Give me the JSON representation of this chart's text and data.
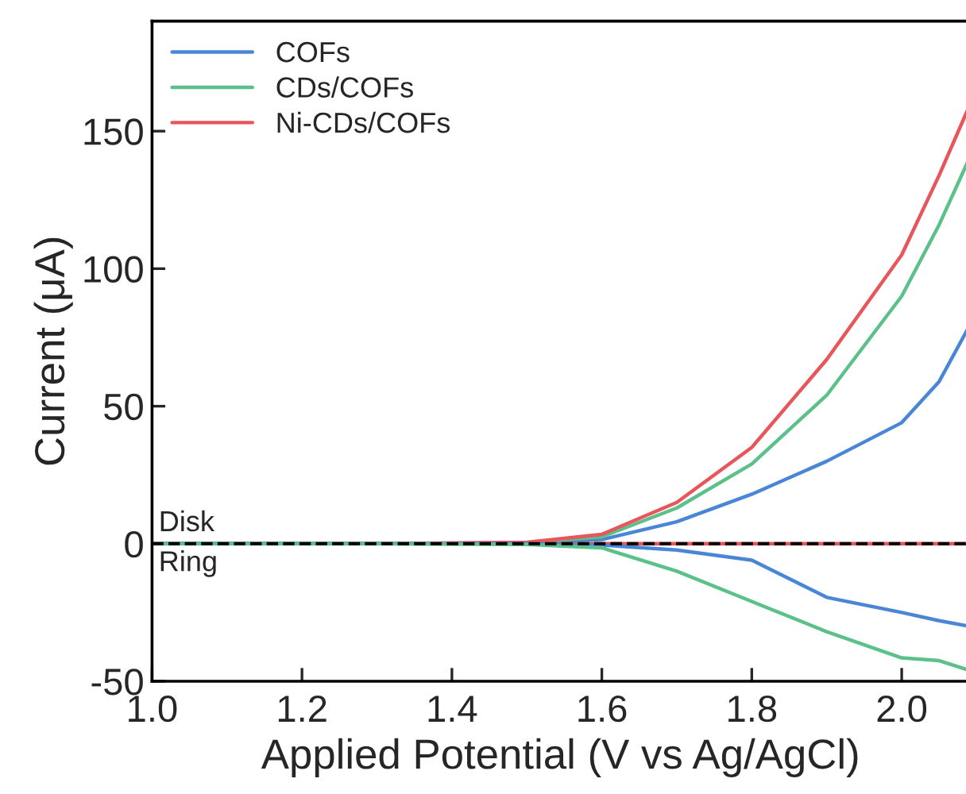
{
  "chart_data": {
    "type": "line",
    "xlabel": "Applied Potential (V vs Ag/AgCl)",
    "ylabel": "Current (μA)",
    "x": [
      1.0,
      1.3,
      1.5,
      1.6,
      1.7,
      1.8,
      1.9,
      2.0,
      2.05,
      2.09
    ],
    "series": [
      {
        "name": "COFs",
        "color": "#4a86d6",
        "values": [
          0,
          0,
          0.3,
          1.5,
          8,
          18,
          30,
          44,
          59,
          79
        ]
      },
      {
        "name": "CDs/COFs",
        "color": "#5cc08a",
        "values": [
          0,
          0,
          0.4,
          2.5,
          13,
          29,
          54,
          90,
          116,
          140
        ]
      },
      {
        "name": "Ni-CDs/COFs",
        "color": "#e8555a",
        "values": [
          0,
          0,
          0.5,
          3.4,
          15,
          35,
          67,
          105,
          134,
          159
        ]
      },
      {
        "color": "#e8555a",
        "values": [
          0,
          0,
          0,
          0,
          0,
          0,
          0,
          0,
          0,
          0
        ]
      },
      {
        "color": "#4a86d6",
        "values": [
          0,
          0,
          0,
          -0.5,
          -2.3,
          -6,
          -19.5,
          -25,
          -28,
          -30
        ]
      },
      {
        "color": "#5cc08a",
        "values": [
          0,
          0,
          -0.3,
          -1.5,
          -10,
          -21,
          -32,
          -41.5,
          -42.5,
          -46
        ]
      }
    ],
    "ref_lines": [
      {
        "axis": "y",
        "value": 0,
        "color": "#000000",
        "line_style": "dashed"
      }
    ],
    "annotations": [
      {
        "text": "Disk",
        "x": 1.0,
        "y": 0
      },
      {
        "text": "Ring",
        "x": 1.0,
        "y": 0
      }
    ],
    "xlim": [
      1.0,
      2.09
    ],
    "xticks": [
      {
        "value": 1.0,
        "label": "1.0"
      },
      {
        "value": 1.2,
        "label": "1.2"
      },
      {
        "value": 1.4,
        "label": "1.4"
      },
      {
        "value": 1.6,
        "label": "1.6"
      },
      {
        "value": 1.8,
        "label": "1.8"
      },
      {
        "value": 2.0,
        "label": "2.0"
      }
    ],
    "ylim": [
      -50,
      190
    ],
    "yticks": [
      -50,
      0,
      50,
      100,
      150
    ],
    "grid": false,
    "legend": "top left",
    "line_style": "solid",
    "marker": "none"
  }
}
